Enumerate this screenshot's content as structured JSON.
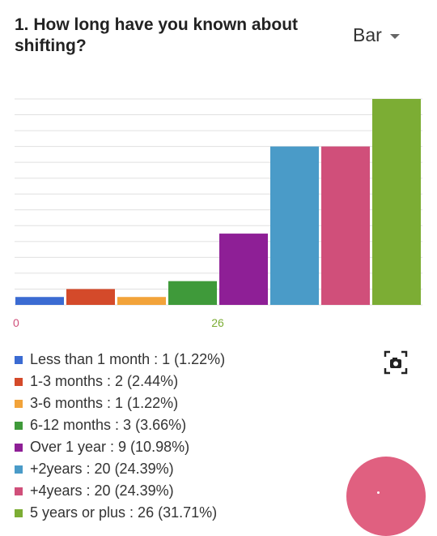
{
  "question": {
    "title": "1. How long have you known about shifting?"
  },
  "chart_type_selector": {
    "label": "Bar"
  },
  "chart_data": {
    "type": "bar",
    "ylim": [
      0,
      26
    ],
    "grid": true,
    "x_axis_tick_labels": [
      "0",
      "26"
    ],
    "categories": [
      "Less than 1 month",
      "1-3 months",
      "3-6 months",
      "6-12 months",
      "Over 1 year",
      "+2years",
      "+4years",
      "5 years or plus"
    ],
    "values": [
      1,
      2,
      1,
      3,
      9,
      20,
      20,
      26
    ],
    "colors": [
      "#3b6bd2",
      "#d44a2a",
      "#f2a33a",
      "#3f9a3a",
      "#8e1f96",
      "#4a9bc8",
      "#d04f7a",
      "#7cad34"
    ],
    "legend": [
      {
        "label": "Less than 1 month : 1 (1.22%)",
        "color": "#3b6bd2"
      },
      {
        "label": "1-3 months : 2 (2.44%)",
        "color": "#d44a2a"
      },
      {
        "label": "3-6 months : 1 (1.22%)",
        "color": "#f2a33a"
      },
      {
        "label": "6-12 months : 3 (3.66%)",
        "color": "#3f9a3a"
      },
      {
        "label": "Over 1 year : 9 (10.98%)",
        "color": "#8e1f96"
      },
      {
        "label": "+2years : 20 (24.39%)",
        "color": "#4a9bc8"
      },
      {
        "label": "+4years : 20 (24.39%)",
        "color": "#d04f7a"
      },
      {
        "label": "5 years or plus : 26 (31.71%)",
        "color": "#7cad34"
      }
    ]
  },
  "icons": {
    "camera": "camera-icon",
    "fab": "fab-button"
  },
  "colors": {
    "fab": "#e06080",
    "grid": "#e0e0e0",
    "tick_0": "#d04f7a",
    "tick_26": "#7cad34"
  }
}
